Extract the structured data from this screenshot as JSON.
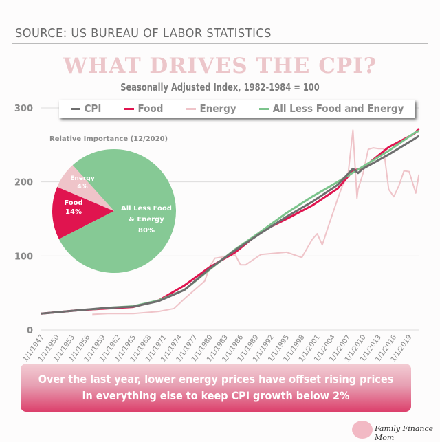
{
  "header": {
    "source": "SOURCE: US BUREAU OF LABOR STATISTICS",
    "title": "WHAT DRIVES THE CPI?",
    "subtitle": "Seasonally Adjusted Index, 1982-1984 = 100"
  },
  "footer": {
    "message": "Over the last year, lower energy prices have offset rising prices in everything else to keep CPI growth below 2%",
    "brand": "Family Finance Mom"
  },
  "chart_data": [
    {
      "type": "line",
      "title": "What Drives the CPI?",
      "ylabel": "",
      "xlabel": "",
      "ylim": [
        0,
        300
      ],
      "yticks": [
        "0",
        "100",
        "200",
        "300"
      ],
      "xticks": [
        "1/1/1947",
        "1/1/1950",
        "1/1/1953",
        "1/1/1956",
        "1/1/1959",
        "1/1/1962",
        "1/1/1965",
        "1/1/1968",
        "1/1/1971",
        "1/1/1974",
        "1/1/1977",
        "1/1/1980",
        "1/1/1983",
        "1/1/1986",
        "1/1/1989",
        "1/1/1992",
        "1/1/1995",
        "1/1/1998",
        "1/1/2001",
        "1/1/2004",
        "1/1/2007",
        "1/1/2010",
        "1/1/2013",
        "1/1/2016",
        "1/1/2019"
      ],
      "xlim": [
        1947,
        2021
      ],
      "legend_position": "top",
      "grid": true,
      "series": [
        {
          "name": "CPI",
          "color": "#6e6e6e",
          "x": [
            1947,
            1950,
            1955,
            1960,
            1965,
            1970,
            1975,
            1980,
            1985,
            1990,
            1995,
            2000,
            2005,
            2008,
            2009,
            2010,
            2015,
            2020,
            2020.9
          ],
          "y": [
            22,
            24,
            27,
            30,
            31.5,
            39,
            54,
            83,
            108,
            131,
            153,
            173,
            196,
            218,
            212,
            218,
            237,
            258,
            262
          ]
        },
        {
          "name": "Food",
          "color": "#e0144f",
          "x": [
            1947,
            1950,
            1955,
            1960,
            1965,
            1970,
            1975,
            1980,
            1985,
            1990,
            1995,
            2000,
            2005,
            2008,
            2010,
            2015,
            2020,
            2020.9
          ],
          "y": [
            22,
            24,
            27,
            29,
            31,
            40,
            60,
            85,
            105,
            133,
            150,
            168,
            191,
            215,
            219,
            247,
            265,
            272
          ]
        },
        {
          "name": "Energy",
          "color": "#efc4c9",
          "x": [
            1957,
            1960,
            1965,
            1970,
            1973,
            1975,
            1979,
            1980,
            1981,
            1983,
            1985,
            1986,
            1987,
            1990,
            1995,
            1998,
            2000,
            2001,
            2002,
            2003,
            2005,
            2006,
            2007,
            2008,
            2008.8,
            2009,
            2010,
            2011,
            2012,
            2013,
            2014,
            2015,
            2016,
            2017,
            2018,
            2019,
            2020.3,
            2020.9
          ],
          "y": [
            21,
            22,
            22,
            25,
            29,
            42,
            66,
            86,
            97,
            99,
            101,
            88,
            88,
            102,
            105,
            98,
            122,
            130,
            115,
            136,
            177,
            196,
            207,
            270,
            178,
            190,
            212,
            244,
            246,
            245,
            245,
            190,
            180,
            195,
            215,
            214,
            185,
            210
          ]
        },
        {
          "name": "All Less Food and Energy",
          "color": "#7cc48c",
          "x": [
            1957,
            1960,
            1965,
            1970,
            1975,
            1980,
            1985,
            1990,
            1995,
            2000,
            2005,
            2010,
            2015,
            2020,
            2020.9
          ],
          "y": [
            28,
            30,
            32,
            40,
            54,
            82,
            109,
            133,
            158,
            180,
            200,
            221,
            242,
            266,
            269
          ]
        }
      ]
    },
    {
      "type": "pie",
      "title": "Relative Importance (12/2020)",
      "slices": [
        {
          "label": "Food",
          "value": 14,
          "text": "Food",
          "pct": "14%",
          "color": "#e0144f"
        },
        {
          "label": "Energy",
          "value": 4,
          "text": "Energy",
          "pct": "4%",
          "color": "#efc4c9"
        },
        {
          "label": "All Less Food & Energy",
          "value": 80,
          "text1": "All Less Food",
          "text2": "& Energy",
          "pct": "80%",
          "color": "#86c995"
        }
      ]
    }
  ]
}
